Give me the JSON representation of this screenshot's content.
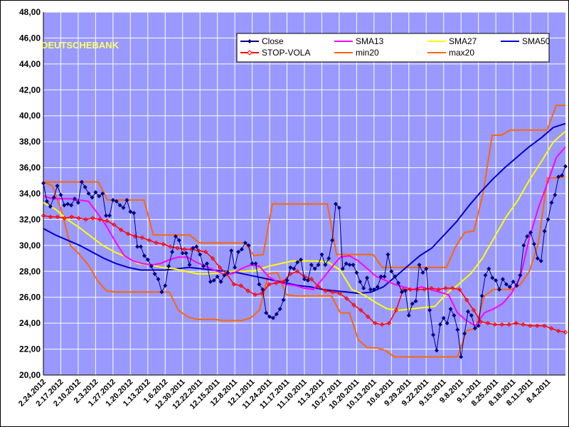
{
  "chart_data": {
    "type": "line",
    "watermark": "DEUTSCHEBANK",
    "colors": {
      "plot_bg": "#9999ff",
      "grid": "#ffffff",
      "close": "#000080",
      "sma13": "#ff00ff",
      "sma27": "#ffff00",
      "sma50": "#0000cc",
      "stop": "#ff0000",
      "band": "#ff6600"
    },
    "ylim": [
      20,
      48
    ],
    "yticks": [
      "20,00",
      "22,00",
      "24,00",
      "26,00",
      "28,00",
      "30,00",
      "32,00",
      "34,00",
      "36,00",
      "38,00",
      "40,00",
      "42,00",
      "44,00",
      "46,00",
      "48,00"
    ],
    "x_tick_labels": [
      "2.24.2012",
      "2.17.2012",
      "2.10.2012",
      "2.3.2012",
      "1.27.2012",
      "1.20.2012",
      "1.13.2012",
      "1.6.2012",
      "12.30.2011",
      "12.22.2011",
      "12.15.2011",
      "12.8.2011",
      "12.1.2011",
      "11.24.2011",
      "11.17.2011",
      "11.10.2011",
      "11.3.2011",
      "10.27.2011",
      "10.20.2011",
      "10.13.2011",
      "10.6.2011",
      "9.29.2011",
      "9.22.2011",
      "9.15.2011",
      "9.8.2011",
      "9.1.2011",
      "8.25.2011",
      "8.18.2011",
      "8.11.2011",
      "8.4.2011"
    ],
    "series": [
      {
        "name": "Close",
        "key": "close",
        "marker": "diamond",
        "values": [
          34.8,
          33.4,
          33.0,
          33.7,
          34.6,
          33.9,
          33.1,
          33.2,
          33.1,
          33.6,
          33.3,
          34.9,
          34.5,
          34.0,
          33.7,
          34.1,
          33.8,
          34.0,
          32.3,
          32.3,
          33.5,
          33.4,
          33.1,
          32.9,
          33.5,
          32.6,
          32.5,
          29.9,
          29.9,
          29.2,
          28.9,
          28.4,
          27.8,
          27.4,
          26.4,
          26.9,
          28.4,
          29.5,
          30.7,
          30.4,
          29.4,
          29.4,
          28.5,
          29.8,
          29.9,
          29.3,
          28.4,
          28.6,
          27.2,
          27.3,
          27.6,
          27.2,
          27.7,
          27.9,
          29.6,
          28.3,
          29.5,
          29.7,
          30.2,
          30.0,
          28.6,
          28.6,
          27.0,
          26.6,
          24.8,
          24.5,
          24.4,
          24.7,
          25.1,
          25.8,
          27.3,
          28.3,
          28.2,
          28.7,
          28.9,
          27.4,
          27.3,
          28.5,
          28.2,
          28.5,
          29.3,
          28.5,
          29.0,
          30.4,
          33.2,
          32.9,
          28.2,
          28.6,
          28.5,
          28.5,
          27.9,
          27.2,
          26.7,
          27.5,
          26.6,
          26.6,
          26.8,
          27.6,
          27.6,
          29.3,
          28.0,
          27.6,
          27.1,
          26.4,
          26.5,
          24.6,
          25.5,
          25.7,
          28.5,
          27.9,
          28.2,
          25.0,
          23.1,
          21.9,
          23.9,
          24.4,
          24.0,
          25.1,
          24.6,
          23.5,
          21.4,
          23.2,
          24.9,
          24.6,
          23.6,
          23.8,
          26.1,
          27.7,
          28.2,
          27.5,
          27.3,
          26.6,
          27.4,
          27.0,
          26.8,
          27.2,
          26.9,
          27.7,
          30.0,
          30.7,
          31.0,
          30.1,
          29.0,
          28.8,
          31.1,
          32.0,
          33.3,
          33.9,
          35.3,
          35.4,
          36.1
        ]
      },
      {
        "name": "SMA13",
        "key": "sma13",
        "values": [
          33.8,
          33.6,
          33.6,
          33.6,
          33.5,
          33.4,
          32.5,
          31.5,
          30.3,
          29.2,
          28.8,
          28.6,
          28.5,
          28.6,
          28.9,
          29.1,
          29.1,
          28.7,
          28.4,
          28.1,
          27.8,
          27.8,
          28.2,
          28.5,
          28.4,
          27.6,
          27.2,
          27.0,
          26.9,
          26.7,
          26.6,
          27.4,
          28.3,
          29.1,
          29.2,
          28.8,
          28.2,
          27.6,
          27.3,
          27.0,
          26.8,
          26.6,
          26.8,
          26.6,
          26.4,
          26.2,
          24.8,
          24.2,
          23.8,
          24.8,
          25.1,
          25.5,
          26.3,
          27.6,
          30.6,
          32.9,
          34.8,
          36.8,
          37.6
        ]
      },
      {
        "name": "SMA27",
        "key": "sma27",
        "values": [
          33.3,
          32.8,
          32.0,
          31.4,
          30.7,
          30.0,
          29.5,
          29.1,
          28.6,
          28.5,
          28.3,
          28.2,
          28.0,
          27.8,
          27.8,
          27.9,
          28.0,
          28.0,
          28.1,
          28.4,
          28.6,
          28.8,
          28.8,
          28.8,
          28.7,
          28.1,
          26.6,
          26.2,
          25.6,
          25.1,
          25.0,
          25.1,
          25.2,
          25.3,
          26.3,
          27.0,
          27.8,
          29.0,
          30.6,
          32.2,
          33.5,
          35.1,
          36.5,
          38.0,
          38.8
        ]
      },
      {
        "name": "SMA50",
        "key": "sma50",
        "values": [
          31.3,
          30.8,
          30.4,
          30.0,
          29.5,
          29.0,
          28.6,
          28.3,
          28.1,
          28.1,
          28.1,
          28.2,
          28.3,
          28.2,
          28.1,
          28.0,
          27.9,
          27.7,
          27.5,
          27.3,
          27.1,
          26.9,
          26.8,
          26.6,
          26.5,
          26.4,
          26.3,
          26.4,
          26.8,
          27.6,
          28.4,
          29.2,
          29.8,
          30.8,
          31.8,
          33.0,
          34.1,
          35.1,
          36.0,
          36.8,
          37.6,
          38.3,
          39.1,
          39.4
        ]
      },
      {
        "name": "STOP-VOLA",
        "key": "stop",
        "marker": "diamond-open",
        "values": [
          32.3,
          32.2,
          32.2,
          32.1,
          32.2,
          32.1,
          32.0,
          32.1,
          32.0,
          31.9,
          31.6,
          31.2,
          30.9,
          30.7,
          30.6,
          30.4,
          30.2,
          30.1,
          29.9,
          29.8,
          29.7,
          29.7,
          29.6,
          29.5,
          29.0,
          28.3,
          27.8,
          27.0,
          26.9,
          26.5,
          26.2,
          26.3,
          27.0,
          27.1,
          27.2,
          27.8,
          28.0,
          27.6,
          27.4,
          26.8,
          26.5,
          26.4,
          26.3,
          25.9,
          25.4,
          25.0,
          24.5,
          24.0,
          23.9,
          24.0,
          25.0,
          26.6,
          26.6,
          26.6,
          26.6,
          26.7,
          26.6,
          26.7,
          26.7,
          26.6,
          25.8,
          25.0,
          24.1,
          24.0,
          23.9,
          23.9,
          23.9,
          24.0,
          23.9,
          23.8,
          23.8,
          23.8,
          23.6,
          23.4,
          23.3
        ]
      },
      {
        "name": "min20",
        "key": "min20",
        "values": [
          34.9,
          34.6,
          32.7,
          30.0,
          29.3,
          28.5,
          27.3,
          26.5,
          26.4,
          26.4,
          26.4,
          26.4,
          26.4,
          26.4,
          26.4,
          25.0,
          24.5,
          24.3,
          24.3,
          24.3,
          24.2,
          24.2,
          24.2,
          24.4,
          25.0,
          27.8,
          27.9,
          26.2,
          26.1,
          26.1,
          26.1,
          26.1,
          26.1,
          24.8,
          24.8,
          22.7,
          22.1,
          22.1,
          21.9,
          21.4,
          21.4,
          21.4,
          21.4,
          21.4,
          21.4,
          21.4,
          21.4,
          23.4,
          23.6,
          26.1,
          26.6,
          26.6,
          26.6,
          27.0,
          28.0,
          30.2,
          35.2,
          35.2,
          35.3
        ]
      },
      {
        "name": "max20",
        "key": "max20",
        "values": [
          34.9,
          34.9,
          34.9,
          34.9,
          34.9,
          34.9,
          34.9,
          33.5,
          33.5,
          33.5,
          33.5,
          33.5,
          30.8,
          30.8,
          30.8,
          30.8,
          30.8,
          30.2,
          30.2,
          30.2,
          30.2,
          30.2,
          30.2,
          29.2,
          29.3,
          33.2,
          33.2,
          33.2,
          33.2,
          33.2,
          33.2,
          33.2,
          29.3,
          29.3,
          29.3,
          29.3,
          29.3,
          28.3,
          28.3,
          28.3,
          28.3,
          28.3,
          28.3,
          28.3,
          28.3,
          29.9,
          31.0,
          31.1,
          34.0,
          38.5,
          38.5,
          38.9,
          38.9,
          38.9,
          38.9,
          38.9,
          40.8,
          40.8
        ]
      }
    ],
    "legend": {
      "placement": "top-right",
      "items": [
        {
          "label": "Close",
          "key": "close"
        },
        {
          "label": "SMA13",
          "key": "sma13"
        },
        {
          "label": "SMA27",
          "key": "sma27"
        },
        {
          "label": "SMA50",
          "key": "sma50"
        },
        {
          "label": "STOP-VOLA",
          "key": "stop"
        },
        {
          "label": "min20",
          "key": "min20"
        },
        {
          "label": "max20",
          "key": "max20"
        }
      ]
    }
  }
}
